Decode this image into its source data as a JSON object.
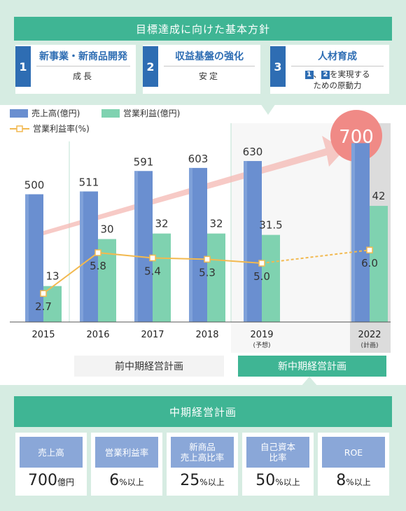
{
  "header": {
    "title": "目標達成に向けた基本方針",
    "policies": [
      {
        "num": "1",
        "title": "新事業・新商品開発",
        "sub": "成長"
      },
      {
        "num": "2",
        "title": "収益基盤の強化",
        "sub": "安定"
      },
      {
        "num": "3",
        "title": "人材育成",
        "sub_chip1": "1",
        "sub_sep": "、",
        "sub_chip2": "2",
        "sub_line1": "を実現する",
        "sub_line2": "ための原動力"
      }
    ]
  },
  "legend": {
    "sales": "売上高(億円)",
    "profit": "営業利益(億円)",
    "margin": "営業利益率(%)"
  },
  "plans": {
    "previous": "前中期経営計画",
    "new": "新中期経営計画"
  },
  "chart_data": {
    "type": "bar",
    "categories": [
      "2015",
      "2016",
      "2017",
      "2018",
      "2019",
      "2022"
    ],
    "category_notes": [
      "",
      "",
      "",
      "",
      "(予想)",
      "(計画)"
    ],
    "series": [
      {
        "name": "売上高(億円)",
        "values": [
          500,
          511,
          591,
          603,
          630,
          700
        ],
        "labels": [
          "500",
          "511",
          "591",
          "603",
          "630",
          "700"
        ],
        "color": "#6a8fd0"
      },
      {
        "name": "営業利益(億円)",
        "values": [
          13,
          30,
          32,
          32,
          31.5,
          42
        ],
        "labels": [
          "13",
          "30",
          "32",
          "32",
          "31.5",
          "42"
        ],
        "color": "#7fd2b0"
      },
      {
        "name": "営業利益率(%)",
        "type": "line",
        "values": [
          2.7,
          5.8,
          5.4,
          5.3,
          5.0,
          6.0
        ],
        "labels": [
          "2.7",
          "5.8",
          "5.4",
          "5.3",
          "5.0",
          "6.0"
        ],
        "color": "#f2b950"
      }
    ]
  },
  "bottom": {
    "title": "中期経営計画",
    "kpis": [
      {
        "label1": "売上高",
        "label2": "",
        "value": "700",
        "unit": "億円"
      },
      {
        "label1": "営業利益率",
        "label2": "",
        "value": "6",
        "unit": "%以上"
      },
      {
        "label1": "新商品",
        "label2": "売上高比率",
        "value": "25",
        "unit": "%以上"
      },
      {
        "label1": "自己資本",
        "label2": "比率",
        "value": "50",
        "unit": "%以上"
      },
      {
        "label1": "ROE",
        "label2": "",
        "value": "8",
        "unit": "%以上"
      }
    ]
  },
  "colors": {
    "teal": "#3fb594",
    "panel": "#d6ece2",
    "blue": "#2e6db3",
    "sales_bar": "#6a8fd0",
    "profit_bar": "#7fd2b0",
    "margin_line": "#f2b950",
    "target_circle": "#f08a86"
  }
}
